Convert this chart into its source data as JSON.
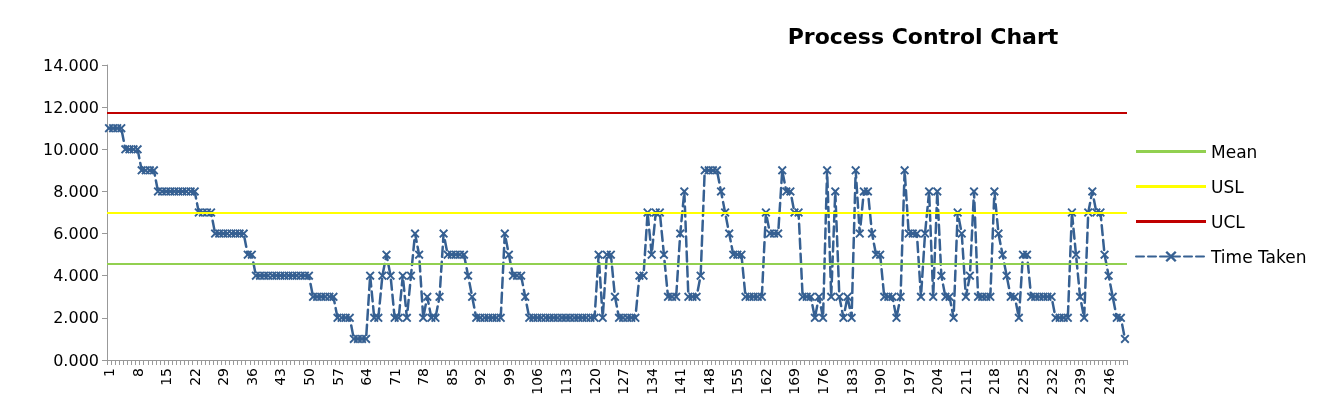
{
  "chart_data": {
    "type": "line",
    "title": "Process Control Chart",
    "categories": [
      "1",
      null,
      null,
      null,
      null,
      null,
      null,
      "8",
      null,
      null,
      null,
      null,
      null,
      null,
      "15",
      null,
      null,
      null,
      null,
      null,
      null,
      "22",
      null,
      null,
      null,
      null,
      null,
      null,
      "29",
      null,
      null,
      null,
      null,
      null,
      null,
      "36",
      null,
      null,
      null,
      null,
      null,
      null,
      "43",
      null,
      null,
      null,
      null,
      null,
      null,
      "50",
      null,
      null,
      null,
      null,
      null,
      null,
      "57",
      null,
      null,
      null,
      null,
      null,
      null,
      "64",
      null,
      null,
      null,
      null,
      null,
      null,
      "71",
      null,
      null,
      null,
      null,
      null,
      null,
      "78",
      null,
      null,
      null,
      null,
      null,
      null,
      "85",
      null,
      null,
      null,
      null,
      null,
      null,
      "92",
      null,
      null,
      null,
      null,
      null,
      null,
      "99",
      null,
      null,
      null,
      null,
      null,
      null,
      "106",
      null,
      null,
      null,
      null,
      null,
      null,
      "113",
      null,
      null,
      null,
      null,
      null,
      null,
      "120",
      null,
      null,
      null,
      null,
      null,
      null,
      "127",
      null,
      null,
      null,
      null,
      null,
      null,
      "134",
      null,
      null,
      null,
      null,
      null,
      null,
      "141",
      null,
      null,
      null,
      null,
      null,
      null,
      "148",
      null,
      null,
      null,
      null,
      null,
      null,
      "155",
      null,
      null,
      null,
      null,
      null,
      null,
      "162",
      null,
      null,
      null,
      null,
      null,
      null,
      "169",
      null,
      null,
      null,
      null,
      null,
      null,
      "176",
      null,
      null,
      null,
      null,
      null,
      null,
      "183",
      null,
      null,
      null,
      null,
      null,
      null,
      "190",
      null,
      null,
      null,
      null,
      null,
      null,
      "197",
      null,
      null,
      null,
      null,
      null,
      null,
      "204",
      null,
      null,
      null,
      null,
      null,
      null,
      "211",
      null,
      null,
      null,
      null,
      null,
      null,
      "218",
      null,
      null,
      null,
      null,
      null,
      null,
      "225",
      null,
      null,
      null,
      null,
      null,
      null,
      "232",
      null,
      null,
      null,
      null,
      null,
      null,
      "239",
      null,
      null,
      null,
      null,
      null,
      null,
      "246",
      null,
      null,
      null,
      null
    ],
    "series": [
      {
        "name": "Time Taken",
        "color": "#366092",
        "values": [
          11,
          11,
          11,
          11,
          10,
          10,
          10,
          10,
          9,
          9,
          9,
          9,
          8,
          8,
          8,
          8,
          8,
          8,
          8,
          8,
          8,
          8,
          7,
          7,
          7,
          7,
          6,
          6,
          6,
          6,
          6,
          6,
          6,
          6,
          5,
          5,
          4,
          4,
          4,
          4,
          4,
          4,
          4,
          4,
          4,
          4,
          4,
          4,
          4,
          4,
          3,
          3,
          3,
          3,
          3,
          3,
          2,
          2,
          2,
          2,
          1,
          1,
          1,
          1,
          4,
          2,
          2,
          4,
          5,
          4,
          2,
          2,
          4,
          2,
          4,
          6,
          5,
          2,
          3,
          2,
          2,
          3,
          6,
          5,
          5,
          5,
          5,
          5,
          4,
          3,
          2,
          2,
          2,
          2,
          2,
          2,
          2,
          6,
          5,
          4,
          4,
          4,
          3,
          2,
          2,
          2,
          2,
          2,
          2,
          2,
          2,
          2,
          2,
          2,
          2,
          2,
          2,
          2,
          2,
          2,
          5,
          2,
          5,
          5,
          3,
          2,
          2,
          2,
          2,
          2,
          4,
          4,
          7,
          5,
          7,
          7,
          5,
          3,
          3,
          3,
          6,
          8,
          3,
          3,
          3,
          4,
          9,
          9,
          9,
          9,
          8,
          7,
          6,
          5,
          5,
          5,
          3,
          3,
          3,
          3,
          3,
          7,
          6,
          6,
          6,
          9,
          8,
          8,
          7,
          7,
          3,
          3,
          3,
          2,
          3,
          2,
          9,
          3,
          8,
          3,
          2,
          3,
          2,
          9,
          6,
          8,
          8,
          6,
          5,
          5,
          3,
          3,
          3,
          2,
          3,
          9,
          6,
          6,
          6,
          3,
          6,
          8,
          3,
          8,
          4,
          3,
          3,
          2,
          7,
          6,
          3,
          4,
          8,
          3,
          3,
          3,
          3,
          8,
          6,
          5,
          4,
          3,
          3,
          2,
          5,
          5,
          3,
          3,
          3,
          3,
          3,
          3,
          2,
          2,
          2,
          2,
          7,
          5,
          3,
          2,
          7,
          8,
          7,
          7,
          5,
          4,
          3,
          2,
          2,
          1
        ]
      }
    ],
    "ref_lines": [
      {
        "axis": "y",
        "value": 4.55,
        "label": "Mean",
        "color": "#92d050"
      },
      {
        "axis": "y",
        "value": 7,
        "label": "USL",
        "color": "#ffff00"
      },
      {
        "axis": "y",
        "value": 11.75,
        "label": "UCL",
        "color": "#c00000"
      }
    ],
    "ylim": [
      0,
      14
    ],
    "yticks": [
      {
        "value": 0,
        "label": "0.000"
      },
      {
        "value": 2,
        "label": "2.000"
      },
      {
        "value": 4,
        "label": "4.000"
      },
      {
        "value": 6,
        "label": "6.000"
      },
      {
        "value": 8,
        "label": "8.000"
      },
      {
        "value": 10,
        "label": "10.000"
      },
      {
        "value": 12,
        "label": "12.000"
      },
      {
        "value": 14,
        "label": "14.000"
      }
    ],
    "grid": false,
    "legend": "right",
    "marker": "cross",
    "line_style": "dashed"
  }
}
